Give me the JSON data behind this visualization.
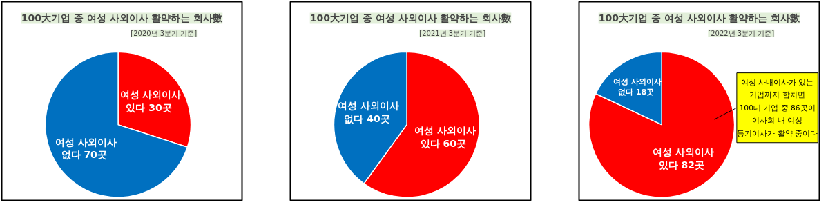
{
  "chart_data": [
    {
      "type": "pie",
      "title": "100大기업 중 여성 사외이사 활약하는 회사數",
      "subtitle": "[2020년 3분기 기준]",
      "categories": [
        "여성 사외이사\n있다",
        "여성 사외이사\n없다"
      ],
      "values": [
        30,
        70
      ],
      "value_labels": [
        "30곳",
        "70곳"
      ],
      "colors": [
        "#ff0000",
        "#0070c0"
      ]
    },
    {
      "type": "pie",
      "title": "100大기업 중 여성 사외이사 활약하는 회사數",
      "subtitle": "[2021년 3분기 기준]",
      "categories": [
        "여성 사외이사\n있다",
        "여성 사외이사\n없다"
      ],
      "values": [
        60,
        40
      ],
      "value_labels": [
        "60곳",
        "40곳"
      ],
      "colors": [
        "#ff0000",
        "#0070c0"
      ]
    },
    {
      "type": "pie",
      "title": "100大기업 중 여성 사외이사 활약하는 회사數",
      "subtitle": "[2022년 3분기 기준]",
      "categories": [
        "여성 사외이사\n있다",
        "여성 사외이사\n없다"
      ],
      "values": [
        82,
        18
      ],
      "value_labels": [
        "82곳",
        "18곳"
      ],
      "colors": [
        "#ff0000",
        "#0070c0"
      ],
      "annotations": [
        "여성 사내이사가 있는\n기업까지 합치면\n100대 기업 중 86곳이\n이사회 내 여성\n등기이사가 활약 중이다"
      ]
    }
  ]
}
